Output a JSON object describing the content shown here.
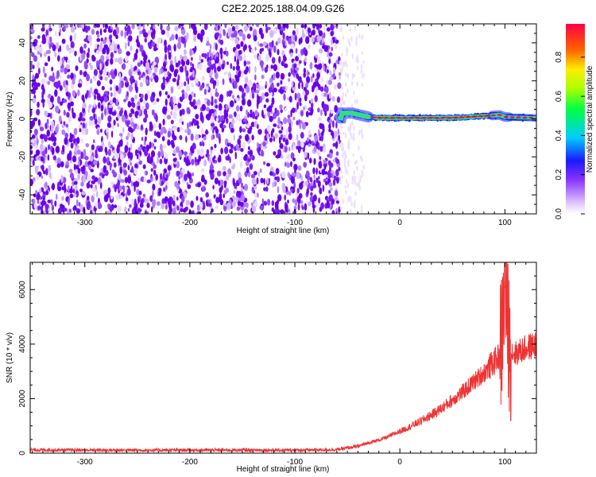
{
  "figure_title": "C2E2.2025.188.04.09.G26",
  "chart_data": [
    {
      "type": "heatmap",
      "xlabel": "Height of straight line (km)",
      "ylabel": "Frequency (Hz)",
      "xlim": [
        -352,
        130
      ],
      "ylim": [
        -50,
        50
      ],
      "xticks": [
        -300,
        -200,
        -100,
        0,
        100
      ],
      "xtick_labels": [
        "-300",
        "-200",
        "-100",
        "0",
        "100"
      ],
      "yticks": [
        -40,
        -20,
        0,
        20,
        40
      ],
      "ytick_labels": [
        "-40",
        "-20",
        "0",
        "20",
        "40"
      ],
      "colorbar": {
        "label": "Normalized spectral amplitude",
        "range": [
          0,
          0.97
        ],
        "ticks": [
          0.0,
          0.2,
          0.4,
          0.6,
          0.8
        ],
        "tick_labels": [
          "0.0",
          "0.2",
          "0.4",
          "0.6",
          "0.8"
        ]
      },
      "regions": [
        {
          "description_x_range": [
            -352,
            -57
          ],
          "content": "noise",
          "amplitude_range": [
            0.0,
            0.2
          ]
        },
        {
          "description_x_range": [
            -57,
            130
          ],
          "content": "signal line near 0 Hz",
          "center_frequency": 0,
          "amplitude_range": [
            0.2,
            0.95
          ]
        }
      ],
      "signal_center_frequency": [
        {
          "x": -55,
          "f": 3
        },
        {
          "x": -45,
          "f": 3
        },
        {
          "x": -38,
          "f": 2
        },
        {
          "x": -30,
          "f": 1
        },
        {
          "x": -20,
          "f": 0.5
        },
        {
          "x": 0,
          "f": 0.5
        },
        {
          "x": 50,
          "f": 0.5
        },
        {
          "x": 80,
          "f": 1.5
        },
        {
          "x": 95,
          "f": 2
        },
        {
          "x": 100,
          "f": 1
        },
        {
          "x": 130,
          "f": 0.5
        }
      ]
    },
    {
      "type": "line",
      "xlabel": "Height of straight line (km)",
      "ylabel": "SNR (10 * v/v)",
      "xlim": [
        -352,
        130
      ],
      "ylim": [
        0,
        7000
      ],
      "xticks": [
        -300,
        -200,
        -100,
        0,
        100
      ],
      "xtick_labels": [
        "-300",
        "-200",
        "-100",
        "0",
        "100"
      ],
      "yticks": [
        0,
        2000,
        4000,
        6000
      ],
      "ytick_labels": [
        "0",
        "2000",
        "4000",
        "6000"
      ],
      "color": "#ee3333",
      "series": [
        {
          "x": [
            -352,
            -300,
            -250,
            -200,
            -150,
            -100,
            -60,
            -40,
            -30,
            -20,
            -10,
            0,
            10,
            20,
            30,
            40,
            50,
            60,
            70,
            80,
            85,
            90,
            95,
            98,
            100,
            102,
            105,
            110,
            120,
            130
          ],
          "y": [
            120,
            110,
            110,
            110,
            110,
            110,
            130,
            250,
            380,
            480,
            620,
            800,
            980,
            1180,
            1400,
            1650,
            1950,
            2250,
            2600,
            2950,
            3150,
            3350,
            3600,
            4600,
            6600,
            5000,
            3750,
            3650,
            3850,
            4000
          ]
        }
      ]
    }
  ]
}
